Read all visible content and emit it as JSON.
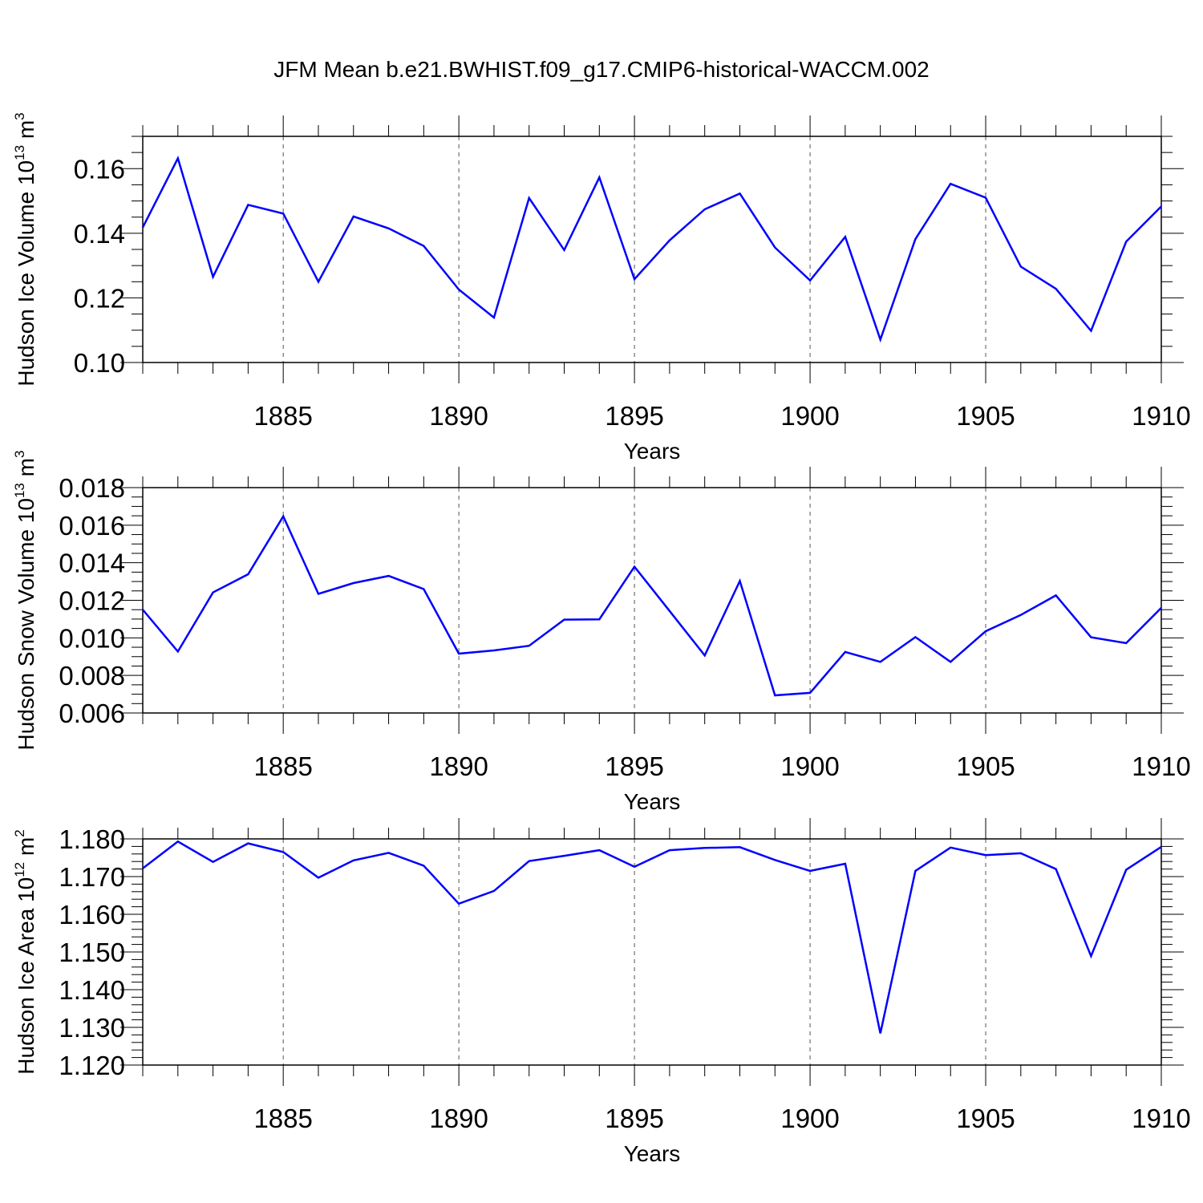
{
  "title": "JFM Mean b.e21.BWHIST.f09_g17.CMIP6-historical-WACCM.002",
  "colors": {
    "line": "#0000ff",
    "axis": "#000000",
    "grid": "#555555"
  },
  "chart_data": [
    {
      "type": "line",
      "ylabel": {
        "text": "Hudson Ice Volume 10",
        "sup": "13",
        "unit": "m",
        "unit_sup": "3"
      },
      "xlabel": "Years",
      "xlim": [
        1881,
        1910
      ],
      "ylim": [
        0.1,
        0.17
      ],
      "xticks": [
        1885,
        1890,
        1895,
        1900,
        1905,
        1910
      ],
      "xtick_labels": [
        "1885",
        "1890",
        "1895",
        "1900",
        "1905",
        "1910"
      ],
      "yticks": [
        0.1,
        0.12,
        0.14,
        0.16
      ],
      "ytick_labels": [
        "0.10",
        "0.12",
        "0.14",
        "0.16"
      ],
      "yminor_step": 0.005,
      "grid": "x-dashed",
      "x": [
        1881,
        1882,
        1883,
        1884,
        1885,
        1886,
        1887,
        1888,
        1889,
        1890,
        1891,
        1892,
        1893,
        1894,
        1895,
        1896,
        1897,
        1898,
        1899,
        1900,
        1901,
        1902,
        1903,
        1904,
        1905,
        1906,
        1907,
        1908,
        1909,
        1910
      ],
      "series": [
        {
          "values": [
            0.1418,
            0.1632,
            0.1265,
            0.1488,
            0.1461,
            0.125,
            0.1452,
            0.1415,
            0.1361,
            0.1226,
            0.1139,
            0.1509,
            0.1348,
            0.1573,
            0.1258,
            0.1378,
            0.1474,
            0.1523,
            0.1356,
            0.1254,
            0.1389,
            0.1071,
            0.1382,
            0.1553,
            0.151,
            0.1297,
            0.1228,
            0.1098,
            0.1374,
            0.1483
          ]
        }
      ]
    },
    {
      "type": "line",
      "ylabel": {
        "text": "Hudson Snow Volume 10",
        "sup": "13",
        "unit": "m",
        "unit_sup": "3"
      },
      "xlabel": "Years",
      "xlim": [
        1881,
        1910
      ],
      "ylim": [
        0.006,
        0.018
      ],
      "xticks": [
        1885,
        1890,
        1895,
        1900,
        1905,
        1910
      ],
      "xtick_labels": [
        "1885",
        "1890",
        "1895",
        "1900",
        "1905",
        "1910"
      ],
      "yticks": [
        0.006,
        0.008,
        0.01,
        0.012,
        0.014,
        0.016,
        0.018
      ],
      "ytick_labels": [
        "0.006",
        "0.008",
        "0.010",
        "0.012",
        "0.014",
        "0.016",
        "0.018"
      ],
      "yminor_step": 0.0005,
      "grid": "x-dashed",
      "x": [
        1881,
        1882,
        1883,
        1884,
        1885,
        1886,
        1887,
        1888,
        1889,
        1890,
        1891,
        1892,
        1893,
        1894,
        1895,
        1896,
        1897,
        1898,
        1899,
        1900,
        1901,
        1902,
        1903,
        1904,
        1905,
        1906,
        1907,
        1908,
        1909,
        1910
      ],
      "series": [
        {
          "values": [
            0.0115,
            0.00927,
            0.01242,
            0.01339,
            0.01647,
            0.01234,
            0.01292,
            0.0133,
            0.0126,
            0.00916,
            0.00933,
            0.00958,
            0.01097,
            0.01099,
            0.01379,
            0.01143,
            0.00906,
            0.01303,
            0.00694,
            0.00707,
            0.00925,
            0.00872,
            0.01004,
            0.00872,
            0.01035,
            0.01122,
            0.01226,
            0.01003,
            0.00972,
            0.0116
          ]
        }
      ]
    },
    {
      "type": "line",
      "ylabel": {
        "text": "Hudson Ice Area 10",
        "sup": "12",
        "unit": "m",
        "unit_sup": "2"
      },
      "xlabel": "Years",
      "xlim": [
        1881,
        1910
      ],
      "ylim": [
        1.12,
        1.18
      ],
      "xticks": [
        1885,
        1890,
        1895,
        1900,
        1905,
        1910
      ],
      "xtick_labels": [
        "1885",
        "1890",
        "1895",
        "1900",
        "1905",
        "1910"
      ],
      "yticks": [
        1.12,
        1.13,
        1.14,
        1.15,
        1.16,
        1.17,
        1.18
      ],
      "ytick_labels": [
        "1.120",
        "1.130",
        "1.140",
        "1.150",
        "1.160",
        "1.170",
        "1.180"
      ],
      "yminor_step": 0.002,
      "grid": "x-dashed",
      "x": [
        1881,
        1882,
        1883,
        1884,
        1885,
        1886,
        1887,
        1888,
        1889,
        1890,
        1891,
        1892,
        1893,
        1894,
        1895,
        1896,
        1897,
        1898,
        1899,
        1900,
        1901,
        1902,
        1903,
        1904,
        1905,
        1906,
        1907,
        1908,
        1909,
        1910
      ],
      "series": [
        {
          "values": [
            1.1722,
            1.1793,
            1.1739,
            1.1788,
            1.1765,
            1.1697,
            1.1743,
            1.1763,
            1.1729,
            1.1628,
            1.1662,
            1.1741,
            1.1755,
            1.177,
            1.1726,
            1.177,
            1.1776,
            1.1778,
            1.1744,
            1.1715,
            1.1734,
            1.1284,
            1.1715,
            1.1777,
            1.1757,
            1.1762,
            1.172,
            1.1489,
            1.1718,
            1.1779
          ]
        }
      ]
    }
  ]
}
